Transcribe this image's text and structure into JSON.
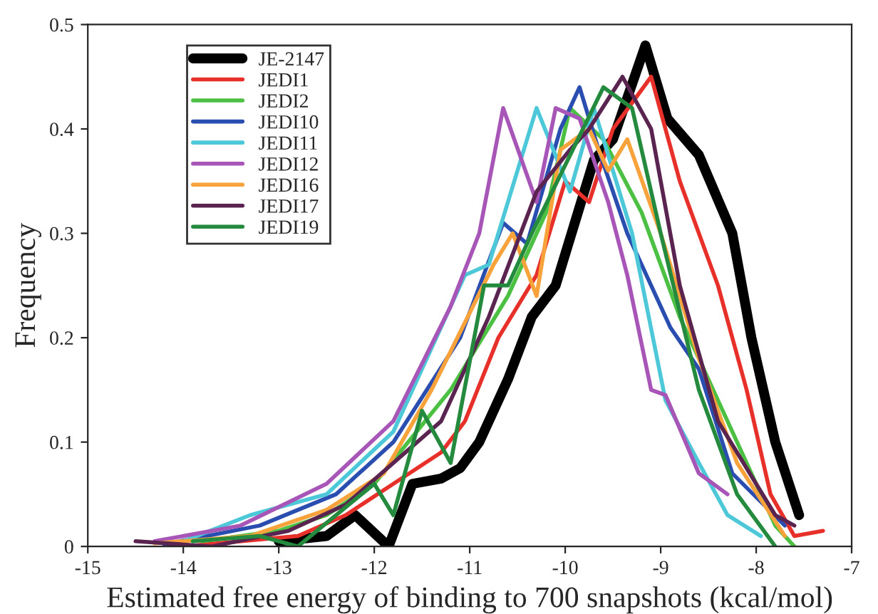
{
  "chart_data": {
    "type": "line",
    "xlabel": "Estimated free energy of binding to 700 snapshots (kcal/mol)",
    "ylabel": "Frequency",
    "xlim": [
      -15,
      -7
    ],
    "xticks": [
      -15,
      -14,
      -13,
      -12,
      -11,
      -10,
      -9,
      -8,
      -7
    ],
    "ylim": [
      0,
      0.5
    ],
    "yticks": [
      0,
      0.1,
      0.2,
      0.3,
      0.4,
      0.5
    ],
    "grid": false,
    "legend": "top left",
    "marker": "none",
    "line_style": "solid",
    "series": [
      {
        "name": "JE-2147",
        "color": "#000000",
        "x": [
          -13.0,
          -12.5,
          -12.2,
          -11.85,
          -11.6,
          -11.3,
          -11.1,
          -10.9,
          -10.6,
          -10.35,
          -10.1,
          -9.7,
          -9.5,
          -9.16,
          -8.93,
          -8.6,
          -8.25,
          -8.05,
          -7.8,
          -7.55
        ],
        "values": [
          0.005,
          0.01,
          0.03,
          0.0,
          0.06,
          0.065,
          0.075,
          0.1,
          0.16,
          0.22,
          0.25,
          0.37,
          0.39,
          0.48,
          0.41,
          0.375,
          0.3,
          0.2,
          0.1,
          0.03
        ]
      },
      {
        "name": "JEDI1",
        "color": "#e8302a",
        "x": [
          -14.0,
          -12.8,
          -12.3,
          -11.8,
          -11.3,
          -11.05,
          -10.7,
          -10.3,
          -10.0,
          -9.75,
          -9.5,
          -9.1,
          -8.8,
          -8.4,
          -8.1,
          -7.85,
          -7.6,
          -7.3
        ],
        "values": [
          0.0,
          0.01,
          0.03,
          0.06,
          0.09,
          0.12,
          0.2,
          0.26,
          0.35,
          0.33,
          0.4,
          0.45,
          0.35,
          0.25,
          0.15,
          0.05,
          0.01,
          0.015
        ]
      },
      {
        "name": "JEDI2",
        "color": "#4cc042",
        "x": [
          -13.8,
          -13.0,
          -12.5,
          -12.0,
          -11.2,
          -10.6,
          -10.2,
          -9.95,
          -9.6,
          -9.2,
          -8.8,
          -8.2,
          -7.8,
          -7.6
        ],
        "values": [
          0.005,
          0.015,
          0.03,
          0.06,
          0.15,
          0.24,
          0.32,
          0.42,
          0.39,
          0.32,
          0.22,
          0.1,
          0.02,
          0.0
        ]
      },
      {
        "name": "JEDI10",
        "color": "#2a4db0",
        "x": [
          -14.2,
          -13.2,
          -12.4,
          -11.8,
          -11.1,
          -10.65,
          -10.4,
          -10.05,
          -9.85,
          -9.65,
          -9.35,
          -8.9,
          -8.6,
          -8.25,
          -7.7
        ],
        "values": [
          0.002,
          0.02,
          0.05,
          0.1,
          0.2,
          0.31,
          0.29,
          0.4,
          0.44,
          0.38,
          0.3,
          0.21,
          0.17,
          0.07,
          0.02
        ]
      },
      {
        "name": "JEDI11",
        "color": "#4cc8d8",
        "x": [
          -14.0,
          -13.3,
          -12.5,
          -11.8,
          -11.05,
          -10.8,
          -10.3,
          -9.95,
          -9.7,
          -9.3,
          -8.95,
          -8.6,
          -8.3,
          -7.95
        ],
        "values": [
          0.005,
          0.03,
          0.05,
          0.11,
          0.26,
          0.27,
          0.42,
          0.34,
          0.42,
          0.3,
          0.14,
          0.08,
          0.03,
          0.01
        ]
      },
      {
        "name": "JEDI12",
        "color": "#a855b8",
        "x": [
          -14.3,
          -13.4,
          -12.5,
          -11.8,
          -11.2,
          -10.9,
          -10.65,
          -10.3,
          -10.1,
          -9.85,
          -9.55,
          -9.35,
          -9.1,
          -8.95,
          -8.6,
          -8.3
        ],
        "values": [
          0.005,
          0.02,
          0.06,
          0.12,
          0.23,
          0.3,
          0.42,
          0.33,
          0.42,
          0.41,
          0.33,
          0.26,
          0.15,
          0.145,
          0.07,
          0.05
        ]
      },
      {
        "name": "JEDI16",
        "color": "#f7a23a",
        "x": [
          -14.3,
          -13.3,
          -12.5,
          -11.9,
          -11.4,
          -10.75,
          -10.55,
          -10.3,
          -10.05,
          -9.75,
          -9.55,
          -9.35,
          -9.0,
          -8.6,
          -8.2,
          -7.7
        ],
        "values": [
          0.003,
          0.01,
          0.035,
          0.07,
          0.15,
          0.27,
          0.3,
          0.24,
          0.38,
          0.4,
          0.36,
          0.39,
          0.3,
          0.18,
          0.08,
          0.01
        ]
      },
      {
        "name": "JEDI17",
        "color": "#5a2450",
        "x": [
          -14.5,
          -13.7,
          -12.9,
          -12.3,
          -11.8,
          -11.3,
          -10.8,
          -10.3,
          -9.95,
          -9.75,
          -9.4,
          -9.1,
          -8.8,
          -8.4,
          -7.8,
          -7.6
        ],
        "values": [
          0.005,
          0.0,
          0.015,
          0.04,
          0.08,
          0.12,
          0.22,
          0.34,
          0.38,
          0.4,
          0.45,
          0.4,
          0.25,
          0.12,
          0.03,
          0.02
        ]
      },
      {
        "name": "JEDI19",
        "color": "#238a3e",
        "x": [
          -13.9,
          -13.2,
          -12.8,
          -12.0,
          -11.8,
          -11.5,
          -11.2,
          -10.85,
          -10.6,
          -10.35,
          -9.6,
          -9.3,
          -9.0,
          -8.6,
          -8.2,
          -7.8
        ],
        "values": [
          0.005,
          0.01,
          0.0,
          0.06,
          0.03,
          0.13,
          0.08,
          0.25,
          0.25,
          0.3,
          0.44,
          0.42,
          0.3,
          0.15,
          0.05,
          0.0
        ]
      }
    ]
  }
}
